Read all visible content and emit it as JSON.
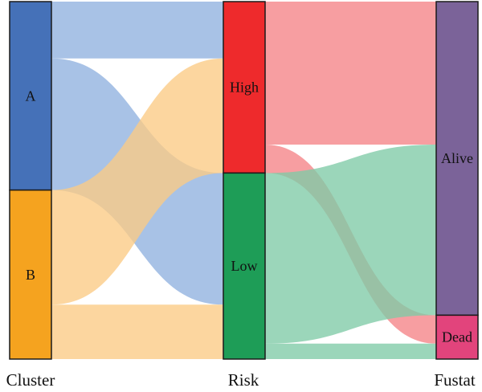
{
  "chart_data": {
    "type": "sankey",
    "axes": [
      "Cluster",
      "Risk",
      "Fustat"
    ],
    "nodes": [
      {
        "id": "A",
        "label": "A",
        "axis": 0,
        "value": 232,
        "color": "#4571b8"
      },
      {
        "id": "B",
        "label": "B",
        "axis": 0,
        "value": 208,
        "color": "#f5a31f"
      },
      {
        "id": "High",
        "label": "High",
        "axis": 1,
        "value": 211,
        "color": "#ee2a2c"
      },
      {
        "id": "Low",
        "label": "Low",
        "axis": 1,
        "value": 229,
        "color": "#1e9d57"
      },
      {
        "id": "Alive",
        "label": "Alive",
        "axis": 2,
        "value": 386,
        "color": "#7b6399"
      },
      {
        "id": "Dead",
        "label": "Dead",
        "axis": 2,
        "value": 54,
        "color": "#e2447c"
      }
    ],
    "links": [
      {
        "source": "A",
        "target": "High",
        "value": 70,
        "color": "#8fb1df"
      },
      {
        "source": "A",
        "target": "Low",
        "value": 162,
        "color": "#8fb1df"
      },
      {
        "source": "B",
        "target": "High",
        "value": 141,
        "color": "#fbcb84"
      },
      {
        "source": "B",
        "target": "Low",
        "value": 67,
        "color": "#fbcb84"
      },
      {
        "source": "High",
        "target": "Alive",
        "value": 176,
        "color": "#f58387"
      },
      {
        "source": "High",
        "target": "Dead",
        "value": 35,
        "color": "#f58387"
      },
      {
        "source": "Low",
        "target": "Alive",
        "value": 210,
        "color": "#7fcaa6"
      },
      {
        "source": "Low",
        "target": "Dead",
        "value": 19,
        "color": "#7fcaa6"
      }
    ]
  }
}
